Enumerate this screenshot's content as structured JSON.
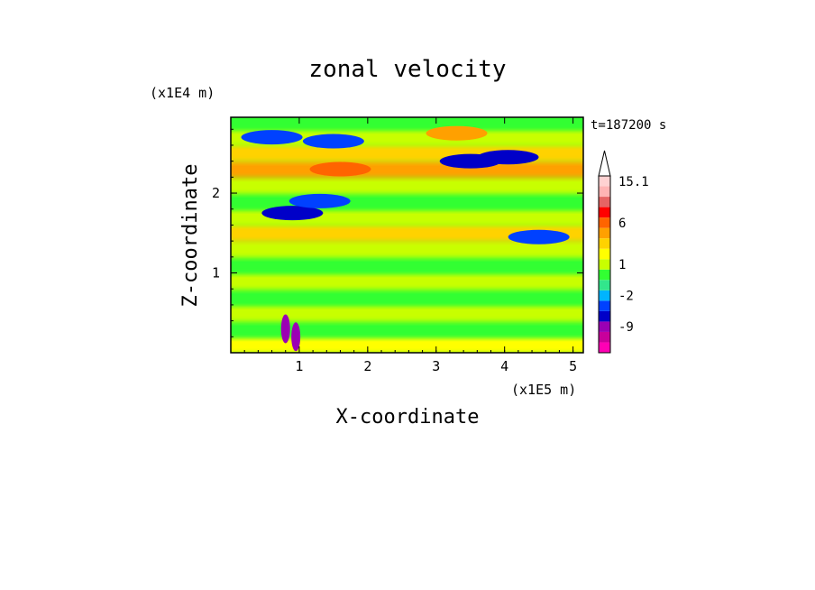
{
  "chart_data": {
    "type": "heatmap",
    "title": "zonal velocity",
    "xlabel": "X-coordinate",
    "ylabel": "Z-coordinate",
    "x_unit": "(x1E5 m)",
    "y_unit": "(x1E4 m)",
    "time_label": "t=187200 s",
    "xlim": [
      0,
      5.15
    ],
    "ylim": [
      0,
      2.95
    ],
    "x_ticks": [
      "1",
      "2",
      "3",
      "4",
      "5"
    ],
    "y_ticks": [
      "1",
      "2"
    ],
    "colorbar": {
      "labels": [
        "15.1",
        "6",
        "1",
        "-2",
        "-9"
      ],
      "colors": [
        "#ff00b4",
        "#c8009b",
        "#9b00b4",
        "#0000c8",
        "#0041ff",
        "#00b4ff",
        "#32e68c",
        "#32ff32",
        "#c8ff00",
        "#ffff00",
        "#ffd200",
        "#ffa000",
        "#ff6400",
        "#ff0000",
        "#e66464",
        "#ffb4b4",
        "#ffd2d2"
      ]
    },
    "field_bands": [
      {
        "z": 0.1,
        "value": 2
      },
      {
        "z": 0.3,
        "value": 0.5
      },
      {
        "z": 0.5,
        "value": 1.5
      },
      {
        "z": 0.7,
        "value": 0
      },
      {
        "z": 0.9,
        "value": 1
      },
      {
        "z": 1.1,
        "value": 0.5
      },
      {
        "z": 1.3,
        "value": 1.5
      },
      {
        "z": 1.5,
        "value": 3
      },
      {
        "z": 1.7,
        "value": 1.5
      },
      {
        "z": 1.9,
        "value": 0
      },
      {
        "z": 2.1,
        "value": 1.5
      },
      {
        "z": 2.3,
        "value": 4
      },
      {
        "z": 2.5,
        "value": 3
      },
      {
        "z": 2.7,
        "value": 1
      },
      {
        "z": 2.9,
        "value": 0
      }
    ],
    "features": [
      {
        "x": 0.6,
        "z": 2.7,
        "value": -4
      },
      {
        "x": 1.5,
        "z": 2.65,
        "value": -4
      },
      {
        "x": 0.9,
        "z": 1.75,
        "value": -5
      },
      {
        "x": 1.3,
        "z": 1.9,
        "value": -4
      },
      {
        "x": 3.5,
        "z": 2.4,
        "value": -5
      },
      {
        "x": 4.05,
        "z": 2.45,
        "value": -6
      },
      {
        "x": 4.5,
        "z": 1.45,
        "value": -4
      },
      {
        "x": 1.6,
        "z": 2.3,
        "value": 6
      },
      {
        "x": 3.3,
        "z": 2.75,
        "value": 5
      },
      {
        "x": 0.8,
        "z": 0.3,
        "value": -7
      },
      {
        "x": 0.95,
        "z": 0.2,
        "value": -9
      }
    ]
  }
}
